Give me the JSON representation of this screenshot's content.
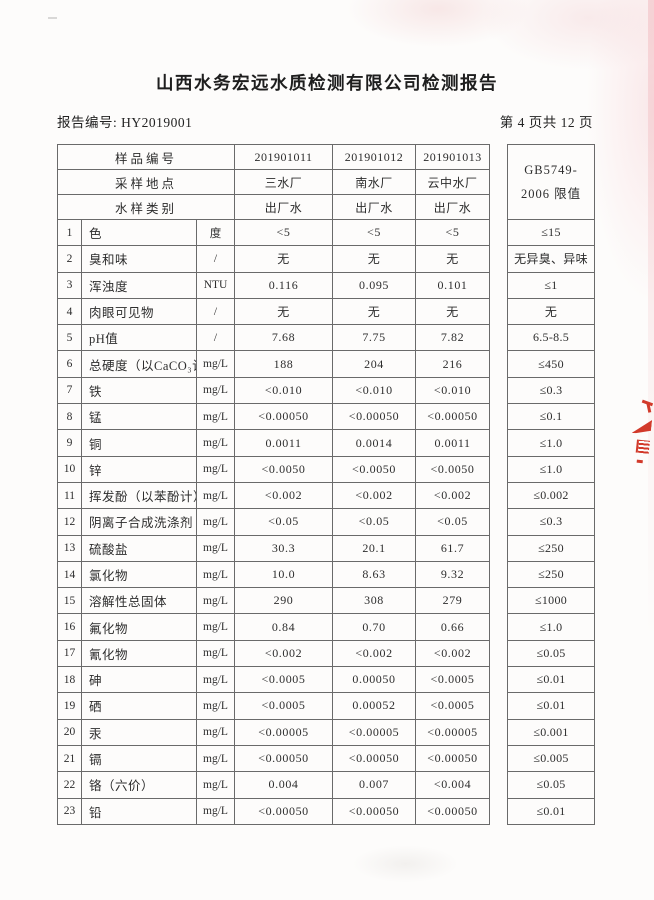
{
  "page": {
    "title": "山西水务宏远水质检测有限公司检测报告",
    "report_no": "报告编号: HY2019001",
    "page_indicator": "第 4 页共 12 页"
  },
  "table": {
    "header_rows": [
      {
        "label": "样品编号",
        "values": [
          "201901011",
          "201901012",
          "201901013"
        ]
      },
      {
        "label": "采样地点",
        "values": [
          "三水厂",
          "南水厂",
          "云中水厂"
        ]
      },
      {
        "label": "水样类别",
        "values": [
          "出厂水",
          "出厂水",
          "出厂水"
        ]
      }
    ],
    "limit_header": [
      "GB5749-",
      "2006 限值"
    ],
    "rows": [
      {
        "no": "1",
        "name": "色",
        "unit": "度",
        "values": [
          "<5",
          "<5",
          "<5"
        ],
        "limit": "≤15"
      },
      {
        "no": "2",
        "name": "臭和味",
        "unit": "/",
        "values": [
          "无",
          "无",
          "无"
        ],
        "limit": "无异臭、异味"
      },
      {
        "no": "3",
        "name": "浑浊度",
        "unit": "NTU",
        "values": [
          "0.116",
          "0.095",
          "0.101"
        ],
        "limit": "≤1"
      },
      {
        "no": "4",
        "name": "肉眼可见物",
        "unit": "/",
        "values": [
          "无",
          "无",
          "无"
        ],
        "limit": "无"
      },
      {
        "no": "5",
        "name": "pH值",
        "unit": "/",
        "values": [
          "7.68",
          "7.75",
          "7.82"
        ],
        "limit": "6.5-8.5"
      },
      {
        "no": "6",
        "name": "总硬度（以CaCO₃计）",
        "unit": "mg/L",
        "values": [
          "188",
          "204",
          "216"
        ],
        "limit": "≤450"
      },
      {
        "no": "7",
        "name": "铁",
        "unit": "mg/L",
        "values": [
          "<0.010",
          "<0.010",
          "<0.010"
        ],
        "limit": "≤0.3"
      },
      {
        "no": "8",
        "name": "锰",
        "unit": "mg/L",
        "values": [
          "<0.00050",
          "<0.00050",
          "<0.00050"
        ],
        "limit": "≤0.1"
      },
      {
        "no": "9",
        "name": "铜",
        "unit": "mg/L",
        "values": [
          "0.0011",
          "0.0014",
          "0.0011"
        ],
        "limit": "≤1.0"
      },
      {
        "no": "10",
        "name": "锌",
        "unit": "mg/L",
        "values": [
          "<0.0050",
          "<0.0050",
          "<0.0050"
        ],
        "limit": "≤1.0"
      },
      {
        "no": "11",
        "name": "挥发酚（以苯酚计）",
        "unit": "mg/L",
        "values": [
          "<0.002",
          "<0.002",
          "<0.002"
        ],
        "limit": "≤0.002"
      },
      {
        "no": "12",
        "name": "阴离子合成洗涤剂",
        "unit": "mg/L",
        "values": [
          "<0.05",
          "<0.05",
          "<0.05"
        ],
        "limit": "≤0.3"
      },
      {
        "no": "13",
        "name": "硫酸盐",
        "unit": "mg/L",
        "values": [
          "30.3",
          "20.1",
          "61.7"
        ],
        "limit": "≤250"
      },
      {
        "no": "14",
        "name": "氯化物",
        "unit": "mg/L",
        "values": [
          "10.0",
          "8.63",
          "9.32"
        ],
        "limit": "≤250"
      },
      {
        "no": "15",
        "name": "溶解性总固体",
        "unit": "mg/L",
        "values": [
          "290",
          "308",
          "279"
        ],
        "limit": "≤1000"
      },
      {
        "no": "16",
        "name": "氟化物",
        "unit": "mg/L",
        "values": [
          "0.84",
          "0.70",
          "0.66"
        ],
        "limit": "≤1.0"
      },
      {
        "no": "17",
        "name": "氰化物",
        "unit": "mg/L",
        "values": [
          "<0.002",
          "<0.002",
          "<0.002"
        ],
        "limit": "≤0.05"
      },
      {
        "no": "18",
        "name": "砷",
        "unit": "mg/L",
        "values": [
          "<0.0005",
          "0.00050",
          "<0.0005"
        ],
        "limit": "≤0.01"
      },
      {
        "no": "19",
        "name": "硒",
        "unit": "mg/L",
        "values": [
          "<0.0005",
          "0.00052",
          "<0.0005"
        ],
        "limit": "≤0.01"
      },
      {
        "no": "20",
        "name": "汞",
        "unit": "mg/L",
        "values": [
          "<0.00005",
          "<0.00005",
          "<0.00005"
        ],
        "limit": "≤0.001"
      },
      {
        "no": "21",
        "name": "镉",
        "unit": "mg/L",
        "values": [
          "<0.00050",
          "<0.00050",
          "<0.00050"
        ],
        "limit": "≤0.005"
      },
      {
        "no": "22",
        "name": "铬（六价）",
        "unit": "mg/L",
        "values": [
          "0.004",
          "0.007",
          "<0.004"
        ],
        "limit": "≤0.05"
      },
      {
        "no": "23",
        "name": "铅",
        "unit": "mg/L",
        "values": [
          "<0.00050",
          "<0.00050",
          "<0.00050"
        ],
        "limit": "≤0.01"
      }
    ]
  },
  "seal": {
    "color": "#d23a2b",
    "description": "red-stamp-fragment-at-page-edge"
  }
}
